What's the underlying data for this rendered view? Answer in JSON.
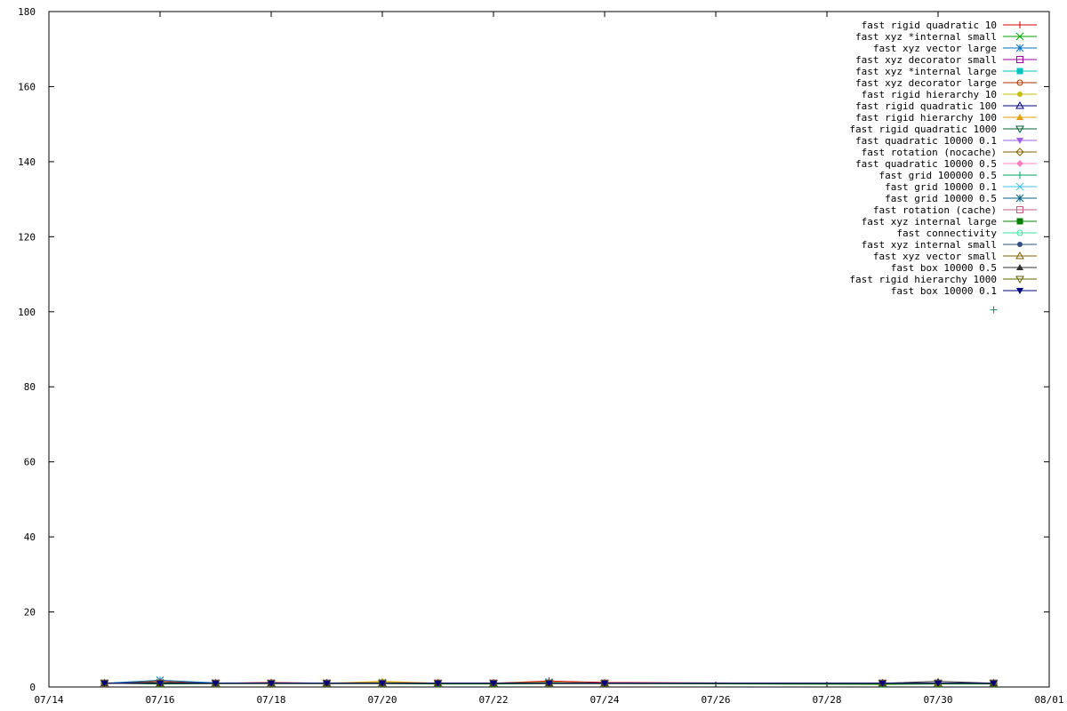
{
  "chart_data": {
    "type": "line",
    "title": "",
    "xlabel": "",
    "ylabel": "",
    "xlim": [
      "07/14",
      "08/01"
    ],
    "ylim": [
      0,
      180
    ],
    "x_ticks": [
      "07/14",
      "07/16",
      "07/18",
      "07/20",
      "07/22",
      "07/24",
      "07/26",
      "07/28",
      "07/30",
      "08/01"
    ],
    "y_ticks": [
      0,
      20,
      40,
      60,
      80,
      100,
      120,
      140,
      160,
      180
    ],
    "grid": false,
    "legend_position": "top-right",
    "x_dates": [
      "07/15",
      "07/16",
      "07/17",
      "07/18",
      "07/19",
      "07/20",
      "07/21",
      "07/22",
      "07/23",
      "07/24",
      "07/29",
      "07/30",
      "07/31"
    ],
    "series": [
      {
        "name": "fast rigid quadratic 10",
        "color": "#d40000",
        "marker": "plus",
        "values": [
          1.0,
          1.5,
          1.0,
          1.2,
          1.0,
          1.1,
          1.0,
          1.0,
          1.6,
          1.2,
          0.9,
          1.0,
          1.0
        ]
      },
      {
        "name": "fast xyz *internal small",
        "color": "#00a000",
        "marker": "x",
        "values": [
          1.0,
          1.2,
          1.0,
          1.0,
          1.0,
          1.2,
          1.0,
          1.0,
          1.3,
          1.0,
          0.9,
          1.0,
          1.0
        ]
      },
      {
        "name": "fast xyz vector large",
        "color": "#0070c0",
        "marker": "asterisk",
        "values": [
          1.0,
          1.8,
          1.1,
          1.0,
          1.0,
          1.0,
          0.9,
          1.0,
          1.2,
          1.0,
          0.8,
          1.0,
          1.0
        ]
      },
      {
        "name": "fast xyz decorator small",
        "color": "#a000a0",
        "marker": "open-square",
        "values": [
          1.0,
          1.0,
          1.0,
          1.0,
          1.0,
          1.0,
          1.0,
          1.0,
          1.0,
          1.0,
          1.0,
          1.0,
          1.0
        ]
      },
      {
        "name": "fast xyz *internal large",
        "color": "#00c0c0",
        "marker": "filled-square",
        "values": [
          1.0,
          1.0,
          1.0,
          1.1,
          1.0,
          1.0,
          1.0,
          1.0,
          1.1,
          1.0,
          0.9,
          1.0,
          1.0
        ]
      },
      {
        "name": "fast xyz decorator large",
        "color": "#b03000",
        "marker": "open-circle",
        "values": [
          1.0,
          1.0,
          1.0,
          1.0,
          1.0,
          1.0,
          1.0,
          1.0,
          1.0,
          1.0,
          1.0,
          1.0,
          1.0
        ]
      },
      {
        "name": "fast rigid hierarchy 10",
        "color": "#c0c000",
        "marker": "filled-circle",
        "values": [
          1.0,
          1.1,
          1.0,
          1.0,
          1.0,
          1.3,
          1.0,
          1.0,
          1.2,
          1.0,
          0.9,
          1.0,
          1.0
        ]
      },
      {
        "name": "fast rigid quadratic 100",
        "color": "#000080",
        "marker": "open-triangle-up",
        "values": [
          1.0,
          1.0,
          1.0,
          1.0,
          1.0,
          1.0,
          1.0,
          1.0,
          1.1,
          1.0,
          1.0,
          1.0,
          1.0
        ]
      },
      {
        "name": "fast rigid hierarchy 100",
        "color": "#e0a000",
        "marker": "filled-triangle-up",
        "values": [
          1.0,
          1.0,
          1.0,
          1.0,
          1.0,
          1.5,
          1.0,
          1.0,
          1.2,
          1.0,
          1.0,
          1.0,
          1.0
        ]
      },
      {
        "name": "fast rigid quadratic 1000",
        "color": "#006030",
        "marker": "open-triangle-down",
        "values": [
          1.0,
          1.0,
          1.0,
          1.0,
          1.0,
          1.0,
          1.0,
          1.0,
          1.0,
          1.0,
          1.0,
          1.0,
          1.0
        ]
      },
      {
        "name": "fast quadratic 10000 0.1",
        "color": "#a060e0",
        "marker": "filled-triangle-down",
        "values": [
          1.0,
          1.0,
          1.0,
          1.0,
          1.0,
          1.0,
          1.0,
          1.0,
          1.0,
          1.0,
          1.0,
          1.0,
          1.0
        ]
      },
      {
        "name": "fast rotation (nocache)",
        "color": "#806000",
        "marker": "open-diamond",
        "values": [
          1.0,
          1.0,
          1.0,
          1.0,
          1.0,
          1.0,
          1.0,
          1.0,
          1.0,
          1.0,
          1.0,
          1.0,
          1.0
        ]
      },
      {
        "name": "fast quadratic 10000 0.5",
        "color": "#ff80c0",
        "marker": "filled-diamond",
        "values": [
          1.0,
          1.0,
          1.0,
          1.0,
          1.0,
          1.0,
          1.0,
          1.0,
          1.0,
          1.0,
          1.0,
          1.0,
          1.0
        ]
      },
      {
        "name": "fast grid 100000 0.5",
        "color": "#00a060",
        "marker": "plus",
        "values": [
          1.0,
          1.0,
          1.0,
          1.0,
          1.0,
          1.0,
          1.0,
          1.0,
          1.0,
          1.0,
          1.0,
          1.0,
          100.5
        ]
      },
      {
        "name": "fast grid 10000 0.1",
        "color": "#40c0e0",
        "marker": "x",
        "values": [
          1.0,
          1.0,
          1.0,
          1.0,
          1.0,
          1.0,
          1.0,
          1.0,
          1.0,
          1.0,
          1.0,
          1.0,
          1.0
        ]
      },
      {
        "name": "fast grid 10000 0.5",
        "color": "#006080",
        "marker": "asterisk",
        "values": [
          1.0,
          1.0,
          1.0,
          1.0,
          1.0,
          1.0,
          1.0,
          1.0,
          1.0,
          1.0,
          1.0,
          1.0,
          1.0
        ]
      },
      {
        "name": "fast rotation (cache)",
        "color": "#c06080",
        "marker": "open-square",
        "values": [
          1.0,
          1.0,
          1.0,
          1.0,
          1.0,
          1.0,
          1.0,
          1.0,
          1.0,
          1.0,
          1.0,
          1.0,
          1.0
        ]
      },
      {
        "name": "fast xyz internal large",
        "color": "#008000",
        "marker": "filled-square",
        "values": [
          1.0,
          0.8,
          0.9,
          0.9,
          0.9,
          0.9,
          0.8,
          0.8,
          0.9,
          0.9,
          0.7,
          0.8,
          0.8
        ]
      },
      {
        "name": "fast connectivity",
        "color": "#40e0a0",
        "marker": "open-circle",
        "values": [
          1.0,
          1.0,
          1.0,
          1.0,
          1.0,
          1.0,
          1.0,
          1.0,
          1.0,
          1.0,
          1.0,
          1.0,
          1.0
        ]
      },
      {
        "name": "fast xyz internal small",
        "color": "#305080",
        "marker": "filled-circle",
        "values": [
          1.0,
          1.0,
          1.0,
          1.0,
          1.0,
          1.0,
          1.0,
          1.0,
          1.0,
          1.0,
          1.0,
          1.0,
          1.0
        ]
      },
      {
        "name": "fast xyz vector small",
        "color": "#806000",
        "marker": "open-triangle-up",
        "values": [
          1.0,
          1.0,
          1.0,
          1.0,
          1.0,
          1.0,
          1.0,
          1.0,
          1.0,
          1.0,
          1.0,
          1.0,
          1.0
        ]
      },
      {
        "name": "fast box 10000 0.5",
        "color": "#303030",
        "marker": "filled-triangle-up",
        "values": [
          1.0,
          1.0,
          1.0,
          1.0,
          1.0,
          1.0,
          1.0,
          1.0,
          1.0,
          1.0,
          1.0,
          1.5,
          1.0
        ]
      },
      {
        "name": "fast rigid hierarchy 1000",
        "color": "#606000",
        "marker": "open-triangle-down",
        "values": [
          1.0,
          1.0,
          1.0,
          1.0,
          1.0,
          1.0,
          1.0,
          1.0,
          1.0,
          1.0,
          1.0,
          1.0,
          1.0
        ]
      },
      {
        "name": "fast box 10000 0.1",
        "color": "#000080",
        "marker": "filled-triangle-down",
        "values": [
          1.0,
          1.0,
          1.0,
          1.0,
          1.0,
          1.0,
          1.0,
          1.0,
          1.0,
          1.0,
          1.0,
          1.0,
          1.0
        ]
      }
    ]
  }
}
